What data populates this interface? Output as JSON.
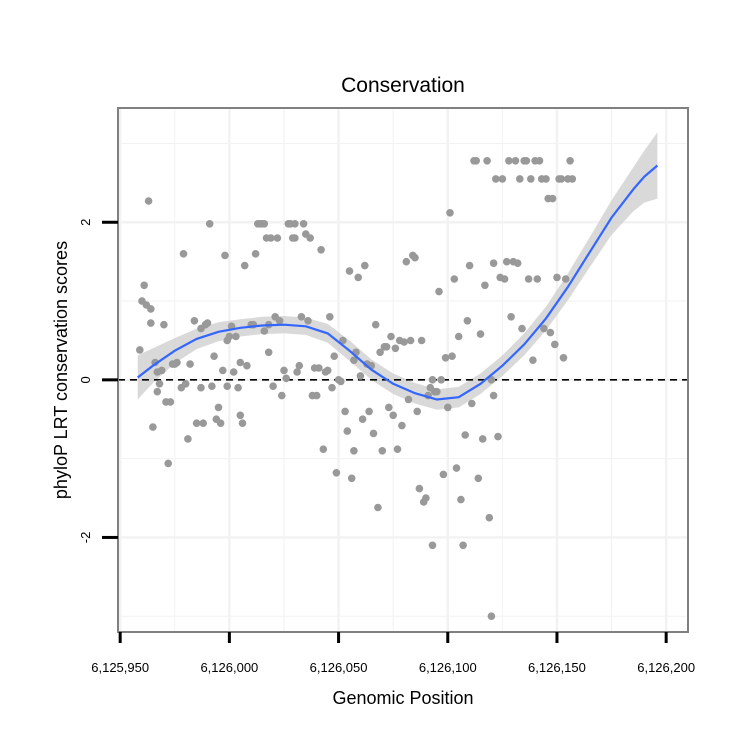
{
  "chart_data": {
    "type": "scatter",
    "title": "Conservation",
    "xlabel": "Genomic Position",
    "ylabel": "phyloP LRT conservation scores",
    "xlim": [
      6125949,
      6126210
    ],
    "ylim": [
      -3.2,
      3.45
    ],
    "x_ticks": [
      6125950,
      6126000,
      6126050,
      6126100,
      6126150,
      6126200
    ],
    "x_tick_labels": [
      "6,125,950",
      "6,126,000",
      "6,126,050",
      "6,126,100",
      "6,126,150",
      "6,126,200"
    ],
    "y_ticks": [
      -2,
      0,
      2
    ],
    "y_tick_labels": [
      "-2",
      "0",
      "2"
    ],
    "reference_line": {
      "y": 0,
      "style": "dashed"
    },
    "colors": {
      "points": "#999999",
      "smooth": "#3366ff",
      "ribbon": "#cccccc",
      "grid": "#f2f2f2",
      "panel_border": "#808080"
    },
    "points": [
      [
        6125959,
        0.38
      ],
      [
        6125960,
        1.0
      ],
      [
        6125961,
        1.2
      ],
      [
        6125962,
        0.95
      ],
      [
        6125963,
        2.27
      ],
      [
        6125964,
        0.72
      ],
      [
        6125964,
        0.9
      ],
      [
        6125965,
        -0.6
      ],
      [
        6125966,
        0.22
      ],
      [
        6125967,
        0.1
      ],
      [
        6125967,
        -0.15
      ],
      [
        6125968,
        -0.05
      ],
      [
        6125969,
        0.12
      ],
      [
        6125970,
        0.7
      ],
      [
        6125971,
        -0.28
      ],
      [
        6125972,
        -1.06
      ],
      [
        6125973,
        -0.28
      ],
      [
        6125974,
        0.2
      ],
      [
        6125975,
        0.2
      ],
      [
        6125976,
        0.22
      ],
      [
        6125978,
        -0.1
      ],
      [
        6125979,
        1.6
      ],
      [
        6125980,
        -0.05
      ],
      [
        6125981,
        -0.75
      ],
      [
        6125982,
        0.2
      ],
      [
        6125984,
        0.75
      ],
      [
        6125985,
        -0.55
      ],
      [
        6125987,
        -0.1
      ],
      [
        6125987,
        0.65
      ],
      [
        6125988,
        -0.55
      ],
      [
        6125989,
        0.7
      ],
      [
        6125990,
        0.72
      ],
      [
        6125991,
        1.98
      ],
      [
        6125992,
        -0.08
      ],
      [
        6125993,
        0.3
      ],
      [
        6125994,
        -0.5
      ],
      [
        6125995,
        -0.35
      ],
      [
        6125996,
        -0.55
      ],
      [
        6125997,
        0.12
      ],
      [
        6125998,
        1.58
      ],
      [
        6125999,
        0.5
      ],
      [
        6126000,
        0.55
      ],
      [
        6126001,
        0.68
      ],
      [
        6126002,
        0.1
      ],
      [
        6126003,
        0.55
      ],
      [
        6126004,
        -0.1
      ],
      [
        6126005,
        -0.45
      ],
      [
        6126006,
        -0.55
      ],
      [
        6126007,
        1.45
      ],
      [
        6126008,
        0.18
      ],
      [
        6126010,
        0.7
      ],
      [
        6126011,
        0.7
      ],
      [
        6126012,
        1.6
      ],
      [
        6126013,
        1.98
      ],
      [
        6126014,
        1.98
      ],
      [
        6126015,
        1.98
      ],
      [
        6126016,
        1.98
      ],
      [
        6126017,
        1.8
      ],
      [
        6126018,
        0.7
      ],
      [
        6126019,
        1.8
      ],
      [
        6126020,
        -0.08
      ],
      [
        6126021,
        0.8
      ],
      [
        6126022,
        1.8
      ],
      [
        6126023,
        0.75
      ],
      [
        6126024,
        -0.2
      ],
      [
        6126025,
        0.12
      ],
      [
        6126026,
        0.02
      ],
      [
        6126027,
        1.98
      ],
      [
        6126028,
        1.98
      ],
      [
        6126029,
        1.8
      ],
      [
        6126030,
        1.98
      ],
      [
        6126030,
        1.8
      ],
      [
        6126031,
        0.1
      ],
      [
        6126032,
        0.18
      ],
      [
        6126033,
        0.8
      ],
      [
        6126034,
        1.98
      ],
      [
        6126035,
        1.85
      ],
      [
        6126036,
        0.75
      ],
      [
        6126037,
        1.8
      ],
      [
        6126038,
        -0.2
      ],
      [
        6126039,
        0.15
      ],
      [
        6126040,
        -0.2
      ],
      [
        6126041,
        0.15
      ],
      [
        6126042,
        1.65
      ],
      [
        6126043,
        -0.88
      ],
      [
        6126044,
        0.1
      ],
      [
        6126045,
        0.12
      ],
      [
        6126046,
        0.8
      ],
      [
        6126047,
        -0.1
      ],
      [
        6126048,
        0.3
      ],
      [
        6126049,
        -1.18
      ],
      [
        6126050,
        0.0
      ],
      [
        6126051,
        -0.02
      ],
      [
        6126052,
        0.5
      ],
      [
        6126053,
        -0.4
      ],
      [
        6126054,
        -0.65
      ],
      [
        6126055,
        1.38
      ],
      [
        6126056,
        -1.25
      ],
      [
        6126057,
        -0.9
      ],
      [
        6126058,
        0.35
      ],
      [
        6126059,
        1.3
      ],
      [
        6126060,
        0.05
      ],
      [
        6126061,
        -0.5
      ],
      [
        6126062,
        1.45
      ],
      [
        6126063,
        0.2
      ],
      [
        6126064,
        -0.4
      ],
      [
        6126065,
        0.18
      ],
      [
        6126066,
        -0.68
      ],
      [
        6126067,
        0.7
      ],
      [
        6126068,
        -1.62
      ],
      [
        6126069,
        0.35
      ],
      [
        6126070,
        -0.9
      ],
      [
        6126071,
        0.42
      ],
      [
        6126072,
        0.42
      ],
      [
        6126073,
        -0.35
      ],
      [
        6126074,
        0.55
      ],
      [
        6126075,
        -0.45
      ],
      [
        6126076,
        0.4
      ],
      [
        6126077,
        -0.88
      ],
      [
        6126078,
        0.5
      ],
      [
        6126079,
        -0.58
      ],
      [
        6126080,
        0.48
      ],
      [
        6126081,
        1.5
      ],
      [
        6126082,
        -0.25
      ],
      [
        6126083,
        0.5
      ],
      [
        6126084,
        1.58
      ],
      [
        6126085,
        1.55
      ],
      [
        6126086,
        -0.4
      ],
      [
        6126087,
        -1.38
      ],
      [
        6126088,
        0.5
      ],
      [
        6126089,
        -1.55
      ],
      [
        6126090,
        -1.5
      ],
      [
        6126091,
        -0.2
      ],
      [
        6126092,
        -0.1
      ],
      [
        6126093,
        -2.1
      ],
      [
        6126094,
        -0.15
      ],
      [
        6126095,
        -0.15
      ],
      [
        6126096,
        1.12
      ],
      [
        6126097,
        0.0
      ],
      [
        6126098,
        -1.2
      ],
      [
        6126099,
        0.28
      ],
      [
        6126100,
        -0.35
      ],
      [
        6126101,
        2.12
      ],
      [
        6126102,
        0.3
      ],
      [
        6126103,
        1.28
      ],
      [
        6126104,
        -1.12
      ],
      [
        6126105,
        0.55
      ],
      [
        6126106,
        -1.52
      ],
      [
        6126107,
        -2.1
      ],
      [
        6126108,
        -0.7
      ],
      [
        6126109,
        0.75
      ],
      [
        6126110,
        1.45
      ],
      [
        6126111,
        -0.3
      ],
      [
        6126112,
        2.78
      ],
      [
        6126113,
        2.78
      ],
      [
        6126114,
        -1.25
      ],
      [
        6126115,
        0.58
      ],
      [
        6126116,
        -0.75
      ],
      [
        6126117,
        1.2
      ],
      [
        6126118,
        2.78
      ],
      [
        6126119,
        -1.75
      ],
      [
        6126120,
        0.0
      ],
      [
        6126121,
        1.48
      ],
      [
        6126122,
        2.55
      ],
      [
        6126123,
        -0.72
      ],
      [
        6126124,
        1.3
      ],
      [
        6126125,
        2.55
      ],
      [
        6126126,
        1.28
      ],
      [
        6126127,
        1.5
      ],
      [
        6126128,
        2.78
      ],
      [
        6126129,
        0.8
      ],
      [
        6126130,
        1.5
      ],
      [
        6126131,
        2.78
      ],
      [
        6126132,
        1.48
      ],
      [
        6126133,
        2.55
      ],
      [
        6126134,
        0.65
      ],
      [
        6126135,
        2.78
      ],
      [
        6126136,
        2.78
      ],
      [
        6126137,
        1.28
      ],
      [
        6126138,
        2.55
      ],
      [
        6126139,
        0.25
      ],
      [
        6126140,
        2.78
      ],
      [
        6126141,
        1.28
      ],
      [
        6126142,
        2.78
      ],
      [
        6126143,
        2.55
      ],
      [
        6126144,
        0.65
      ],
      [
        6126145,
        2.55
      ],
      [
        6126146,
        2.3
      ],
      [
        6126147,
        0.6
      ],
      [
        6126148,
        2.3
      ],
      [
        6126149,
        0.45
      ],
      [
        6126150,
        1.3
      ],
      [
        6126151,
        2.55
      ],
      [
        6126152,
        2.55
      ],
      [
        6126153,
        0.28
      ],
      [
        6126154,
        1.28
      ],
      [
        6126155,
        2.55
      ],
      [
        6126156,
        2.78
      ],
      [
        6126157,
        2.55
      ],
      [
        6126120,
        -3.0
      ],
      [
        6126121,
        -0.2
      ],
      [
        6126093,
        0.0
      ],
      [
        6126016,
        0.62
      ],
      [
        6126018,
        0.35
      ],
      [
        6126005,
        0.22
      ],
      [
        6125999,
        -0.08
      ],
      [
        6126057,
        0.25
      ]
    ],
    "smooth_fit": [
      [
        6125958,
        0.03
      ],
      [
        6125965,
        0.18
      ],
      [
        6125975,
        0.37
      ],
      [
        6125985,
        0.52
      ],
      [
        6125995,
        0.61
      ],
      [
        6126005,
        0.66
      ],
      [
        6126015,
        0.69
      ],
      [
        6126025,
        0.7
      ],
      [
        6126035,
        0.68
      ],
      [
        6126045,
        0.59
      ],
      [
        6126055,
        0.37
      ],
      [
        6126065,
        0.13
      ],
      [
        6126075,
        -0.05
      ],
      [
        6126085,
        -0.17
      ],
      [
        6126095,
        -0.25
      ],
      [
        6126105,
        -0.22
      ],
      [
        6126115,
        -0.05
      ],
      [
        6126125,
        0.18
      ],
      [
        6126135,
        0.45
      ],
      [
        6126145,
        0.78
      ],
      [
        6126155,
        1.18
      ],
      [
        6126165,
        1.62
      ],
      [
        6126175,
        2.06
      ],
      [
        6126185,
        2.42
      ],
      [
        6126190,
        2.58
      ],
      [
        6126196,
        2.72
      ]
    ],
    "smooth_se": [
      0.28,
      0.22,
      0.16,
      0.13,
      0.12,
      0.11,
      0.11,
      0.11,
      0.11,
      0.12,
      0.13,
      0.13,
      0.13,
      0.13,
      0.13,
      0.13,
      0.13,
      0.13,
      0.14,
      0.15,
      0.17,
      0.19,
      0.22,
      0.28,
      0.33,
      0.42
    ]
  }
}
